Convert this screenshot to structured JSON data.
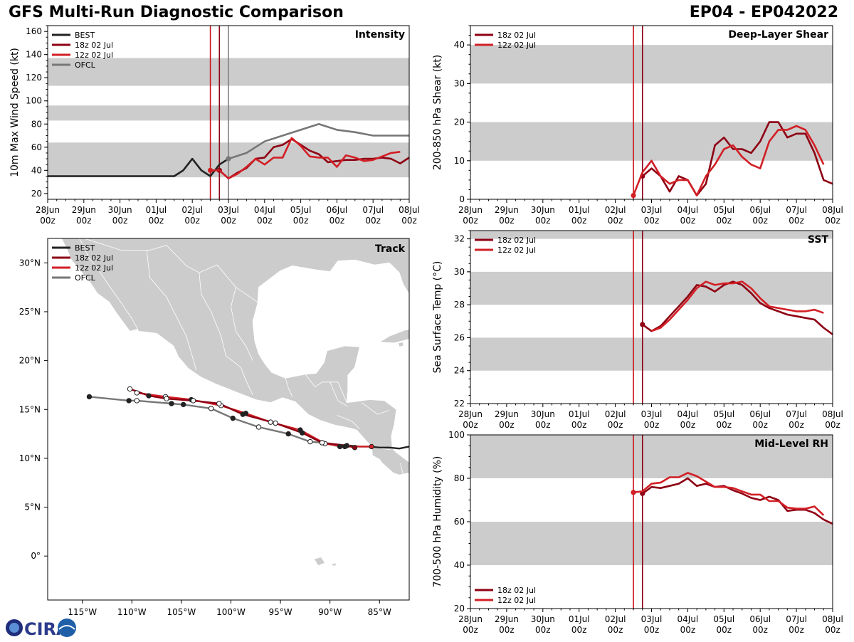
{
  "header": {
    "title": "GFS Multi-Run Diagnostic Comparison",
    "storm_id": "EP04 - EP042022"
  },
  "logo": {
    "text": "CIRA",
    "icon": "globe-icon"
  },
  "colors": {
    "best": "#222222",
    "run18": "#8e0013",
    "run12": "#d21f25",
    "ofcl": "#777777",
    "band": "#cccccc",
    "land": "#cccccc",
    "vline18": "#8e0013",
    "vline12": "#c8141c",
    "vlineofcl": "#808080"
  },
  "time_axis": {
    "ticks": [
      "28Jun\n00z",
      "29Jun\n00z",
      "30Jun\n00z",
      "01Jul\n00z",
      "02Jul\n00z",
      "03Jul\n00z",
      "04Jul\n00z",
      "05Jul\n00z",
      "06Jul\n00z",
      "07Jul\n00z",
      "08Jul\n00z"
    ],
    "start_day": 0,
    "end_day": 10
  },
  "chart_data": [
    {
      "id": "intensity",
      "type": "line",
      "title": "Intensity",
      "ylabel": "10m Max Wind Speed (kt)",
      "ylim": [
        15,
        165
      ],
      "yticks": [
        20,
        40,
        60,
        80,
        100,
        120,
        140,
        160
      ],
      "bands": [
        [
          34,
          64
        ],
        [
          83,
          96
        ],
        [
          113,
          137
        ]
      ],
      "vlines": [
        {
          "x": 4.5,
          "series": "12z 02 Jul"
        },
        {
          "x": 4.75,
          "series": "18z 02 Jul"
        },
        {
          "x": 5.0,
          "series": "OFCL"
        }
      ],
      "legend": [
        "BEST",
        "18z 02 Jul",
        "12z 02 Jul",
        "OFCL"
      ],
      "series": [
        {
          "name": "BEST",
          "key": "best",
          "x": [
            0,
            1,
            2,
            3,
            3.5,
            3.75,
            4,
            4.25,
            4.5,
            4.75,
            5.0
          ],
          "y": [
            35,
            35,
            35,
            35,
            35,
            40,
            50,
            40,
            35,
            45,
            50
          ]
        },
        {
          "name": "18z 02 Jul",
          "key": "run18",
          "x": [
            4.75,
            5,
            5.25,
            5.5,
            5.75,
            6,
            6.25,
            6.5,
            6.75,
            7,
            7.25,
            7.5,
            7.75,
            8,
            8.25,
            8.5,
            8.75,
            9,
            9.25,
            9.5,
            9.75,
            10
          ],
          "y": [
            40,
            33,
            38,
            42,
            50,
            51,
            60,
            62,
            67,
            62,
            57,
            54,
            47,
            48,
            49,
            49,
            50,
            50,
            51,
            50,
            46,
            51
          ],
          "start_marker": true
        },
        {
          "name": "12z 02 Jul",
          "key": "run12",
          "x": [
            4.5,
            4.75,
            5,
            5.25,
            5.5,
            5.75,
            6,
            6.25,
            6.5,
            6.75,
            7,
            7.25,
            7.5,
            7.75,
            8,
            8.25,
            8.5,
            8.75,
            9,
            9.25,
            9.5,
            9.75
          ],
          "y": [
            40,
            40,
            33,
            37,
            43,
            50,
            45,
            51,
            51,
            68,
            61,
            52,
            51,
            51,
            43,
            53,
            51,
            48,
            49,
            52,
            55,
            56
          ],
          "start_marker": true
        },
        {
          "name": "OFCL",
          "key": "ofcl",
          "x": [
            5,
            5.5,
            6,
            6.5,
            7,
            7.5,
            8,
            8.5,
            9,
            9.5,
            10
          ],
          "y": [
            50,
            55,
            65,
            70,
            75,
            80,
            75,
            73,
            70,
            70,
            70
          ],
          "start_marker": true
        }
      ]
    },
    {
      "id": "shear",
      "type": "line",
      "title": "Deep-Layer Shear",
      "ylabel": "200-850 hPa Shear (kt)",
      "ylim": [
        0,
        45
      ],
      "yticks": [
        0,
        10,
        20,
        30,
        40
      ],
      "bands": [
        [
          10,
          20
        ],
        [
          30,
          40
        ]
      ],
      "vlines": [
        {
          "x": 4.5,
          "series": "12z 02 Jul"
        },
        {
          "x": 4.75,
          "series": "18z 02 Jul"
        }
      ],
      "legend": [
        "18z 02 Jul",
        "12z 02 Jul"
      ],
      "series": [
        {
          "name": "18z 02 Jul",
          "key": "run18",
          "x": [
            4.75,
            5,
            5.25,
            5.5,
            5.75,
            6,
            6.25,
            6.5,
            6.75,
            7,
            7.25,
            7.5,
            7.75,
            8,
            8.25,
            8.5,
            8.75,
            9,
            9.25,
            9.5,
            9.75,
            10
          ],
          "y": [
            6,
            8,
            6,
            2,
            6,
            5,
            1,
            4,
            14,
            16,
            13,
            13,
            12,
            15,
            20,
            20,
            16,
            17,
            17,
            12,
            5,
            4
          ],
          "start_marker": true
        },
        {
          "name": "12z 02 Jul",
          "key": "run12",
          "x": [
            4.5,
            4.75,
            5,
            5.25,
            5.5,
            5.75,
            6,
            6.25,
            6.5,
            6.75,
            7,
            7.25,
            7.5,
            7.75,
            8,
            8.25,
            8.5,
            8.75,
            9,
            9.25,
            9.5,
            9.75
          ],
          "y": [
            1,
            7,
            10,
            6,
            4,
            5,
            5,
            1,
            6,
            9,
            13,
            14,
            11,
            9,
            8,
            15,
            18,
            18,
            19,
            18,
            14,
            9
          ],
          "start_marker": true
        }
      ]
    },
    {
      "id": "sst",
      "type": "line",
      "title": "SST",
      "ylabel": "Sea Surface Temp (°C)",
      "ylim": [
        22,
        32.5
      ],
      "yticks": [
        22,
        24,
        26,
        28,
        30,
        32
      ],
      "bands": [
        [
          24,
          26
        ],
        [
          28,
          30
        ],
        [
          32,
          32.5
        ]
      ],
      "vlines": [
        {
          "x": 4.5,
          "series": "12z 02 Jul"
        },
        {
          "x": 4.75,
          "series": "18z 02 Jul"
        }
      ],
      "legend": [
        "18z 02 Jul",
        "12z 02 Jul"
      ],
      "series": [
        {
          "name": "18z 02 Jul",
          "key": "run18",
          "x": [
            4.75,
            5,
            5.25,
            5.5,
            5.75,
            6,
            6.25,
            6.5,
            6.75,
            7,
            7.25,
            7.5,
            7.75,
            8,
            8.25,
            8.5,
            8.75,
            9,
            9.25,
            9.5,
            9.75,
            10
          ],
          "y": [
            26.8,
            26.4,
            26.7,
            27.3,
            27.9,
            28.5,
            29.2,
            29.1,
            28.8,
            29.2,
            29.4,
            29.2,
            28.7,
            28.1,
            27.8,
            27.6,
            27.4,
            27.3,
            27.2,
            27.1,
            26.6,
            26.2
          ],
          "start_marker": true
        },
        {
          "name": "12z 02 Jul",
          "key": "run12",
          "x": [
            5,
            5.25,
            5.5,
            5.75,
            6,
            6.25,
            6.5,
            6.75,
            7,
            7.25,
            7.5,
            7.75,
            8,
            8.25,
            8.5,
            8.75,
            9,
            9.25,
            9.5,
            9.75
          ],
          "y": [
            26.4,
            26.6,
            27.1,
            27.7,
            28.3,
            29.0,
            29.4,
            29.2,
            29.3,
            29.3,
            29.4,
            29.0,
            28.4,
            27.9,
            27.8,
            27.7,
            27.6,
            27.6,
            27.7,
            27.5
          ]
        }
      ]
    },
    {
      "id": "rh",
      "type": "line",
      "title": "Mid-Level RH",
      "ylabel": "700-500 hPa Humidity (%)",
      "ylim": [
        20,
        100
      ],
      "yticks": [
        20,
        40,
        60,
        80,
        100
      ],
      "bands": [
        [
          40,
          60
        ],
        [
          80,
          100
        ]
      ],
      "vlines": [
        {
          "x": 4.5,
          "series": "12z 02 Jul"
        },
        {
          "x": 4.75,
          "series": "18z 02 Jul"
        }
      ],
      "legend": [
        "18z 02 Jul",
        "12z 02 Jul"
      ],
      "legend_loc": "lower-left",
      "series": [
        {
          "name": "18z 02 Jul",
          "key": "run18",
          "x": [
            4.75,
            5,
            5.25,
            5.5,
            5.75,
            6,
            6.25,
            6.5,
            6.75,
            7,
            7.25,
            7.5,
            7.75,
            8,
            8.25,
            8.5,
            8.75,
            9,
            9.25,
            9.5,
            9.75,
            10
          ],
          "y": [
            73,
            76,
            75.5,
            76.5,
            77.5,
            80,
            76.5,
            77.5,
            76,
            76.5,
            74.5,
            73,
            71,
            70,
            71.5,
            70,
            65,
            65.5,
            65.5,
            64,
            61,
            59
          ],
          "start_marker": true
        },
        {
          "name": "12z 02 Jul",
          "key": "run12",
          "x": [
            4.5,
            4.75,
            5,
            5.25,
            5.5,
            5.75,
            6,
            6.25,
            6.5,
            6.75,
            7,
            7.25,
            7.5,
            7.75,
            8,
            8.25,
            8.5,
            8.75,
            9,
            9.25,
            9.5,
            9.75
          ],
          "y": [
            73.5,
            74,
            77.5,
            78,
            80.5,
            80.5,
            82.5,
            81,
            78.5,
            76,
            76,
            75.5,
            74,
            72.5,
            72.5,
            69.5,
            69.5,
            66.5,
            66,
            66,
            67,
            63
          ],
          "start_marker": true
        }
      ]
    },
    {
      "id": "track",
      "type": "scatter",
      "title": "Track",
      "xlim": [
        -118.5,
        -82
      ],
      "ylim": [
        -4.5,
        32.5
      ],
      "xticks": [
        -115,
        -110,
        -105,
        -100,
        -95,
        -90,
        -85
      ],
      "xtick_labels": [
        "115°W",
        "110°W",
        "105°W",
        "100°W",
        "95°W",
        "90°W",
        "85°W"
      ],
      "yticks": [
        0,
        5,
        10,
        15,
        20,
        25,
        30
      ],
      "ytick_labels": [
        "0°",
        "5°N",
        "10°N",
        "15°N",
        "20°N",
        "25°N",
        "30°N"
      ],
      "legend": [
        "BEST",
        "18z 02 Jul",
        "12z 02 Jul",
        "OFCL"
      ],
      "series": [
        {
          "name": "BEST",
          "key": "best",
          "lon": [
            -82,
            -83,
            -84,
            -85,
            -86,
            -87,
            -88
          ],
          "lat": [
            11.2,
            11.0,
            11.1,
            11.1,
            11.2,
            11.2,
            11.3
          ]
        },
        {
          "name": "18z 02 Jul",
          "key": "run18",
          "lon": [
            -87.5,
            -88.3,
            -90.8,
            -92.8,
            -95.5,
            -98.8,
            -101.2,
            -103.8,
            -106.5,
            -108.3,
            -110.2
          ],
          "lat": [
            11.1,
            11.3,
            11.6,
            12.6,
            13.6,
            14.5,
            15.6,
            15.9,
            16.1,
            16.4,
            17.1
          ],
          "filled": [
            true,
            true,
            false,
            true,
            false,
            true,
            false,
            false,
            false,
            true,
            false
          ]
        },
        {
          "name": "12z 02 Jul",
          "key": "run12",
          "lon": [
            -85.8,
            -88.5,
            -90.5,
            -93.0,
            -96.0,
            -98.5,
            -101.0,
            -104.0,
            -106.6,
            -109.5
          ],
          "lat": [
            11.2,
            11.2,
            11.5,
            12.9,
            13.7,
            14.6,
            15.4,
            16.0,
            16.3,
            16.7
          ],
          "filled": [
            true,
            true,
            false,
            true,
            false,
            true,
            false,
            true,
            false,
            false
          ]
        },
        {
          "name": "OFCL",
          "key": "ofcl",
          "lon": [
            -89.0,
            -90.8,
            -92.0,
            -94.2,
            -97.2,
            -99.8,
            -102.0,
            -104.8,
            -106.0,
            -109.5,
            -110.3,
            -114.3
          ],
          "lat": [
            11.2,
            11.6,
            11.7,
            12.5,
            13.2,
            14.1,
            15.1,
            15.5,
            15.6,
            15.9,
            15.9,
            16.3
          ],
          "filled": [
            true,
            false,
            false,
            true,
            false,
            true,
            false,
            true,
            true,
            false,
            true,
            true
          ]
        }
      ]
    }
  ]
}
